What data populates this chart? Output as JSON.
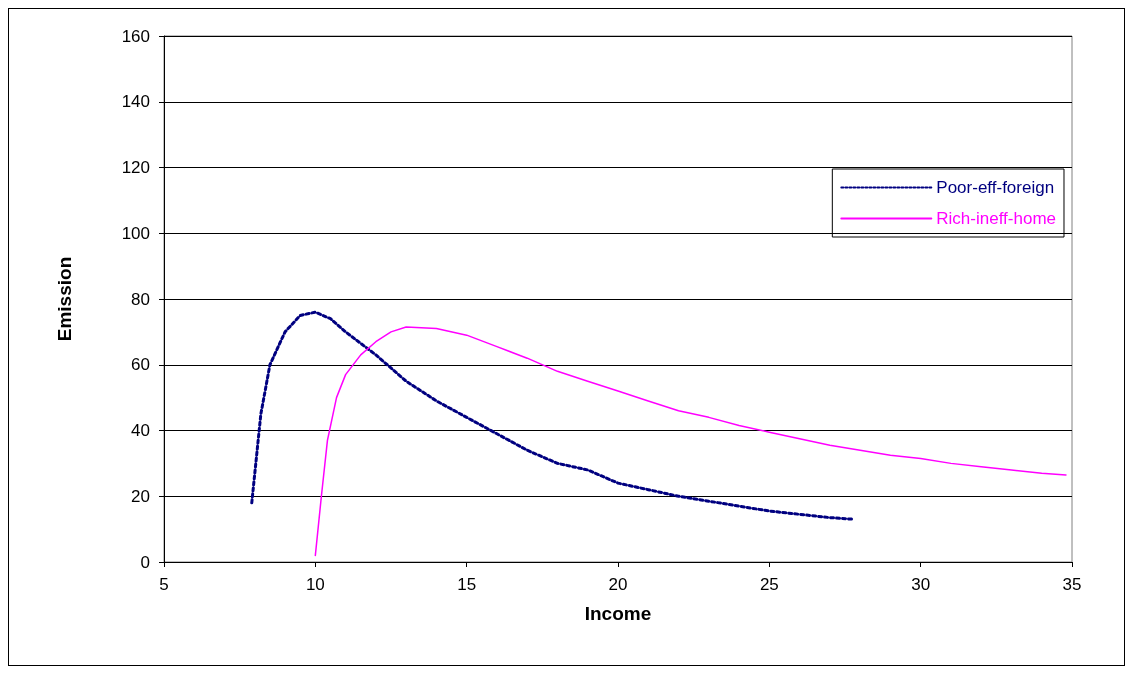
{
  "chart_data": {
    "type": "line",
    "xlabel": "Income",
    "ylabel": "Emission",
    "xlim": [
      5,
      35
    ],
    "xticks": [
      5,
      10,
      15,
      20,
      25,
      30,
      35
    ],
    "ylim": [
      0,
      160
    ],
    "yticks": [
      0,
      20,
      40,
      60,
      80,
      100,
      120,
      140,
      160
    ],
    "grid": "y",
    "legend": "right",
    "marker": "none",
    "series": [
      {
        "name": "Poor-eff-foreign",
        "color": "#000080",
        "line_style": "dotted",
        "x": [
          7.9,
          8.2,
          8.5,
          9,
          9.5,
          10,
          10.5,
          11,
          12,
          13,
          14,
          15,
          16,
          17,
          18,
          19,
          20,
          21,
          22,
          23,
          24,
          25,
          26,
          27,
          27.8
        ],
        "values": [
          18,
          45,
          60,
          70,
          75,
          76,
          74,
          70,
          63,
          55,
          49,
          44,
          39,
          34,
          30,
          28,
          24,
          22,
          20,
          18.5,
          17,
          15.5,
          14.5,
          13.5,
          13
        ]
      },
      {
        "name": "Rich-ineff-home",
        "color": "#ff00ff",
        "line_style": "solid",
        "x": [
          10,
          10.2,
          10.4,
          10.7,
          11,
          11.5,
          12,
          12.5,
          13,
          14,
          15,
          16,
          17,
          18,
          19,
          20,
          21,
          22,
          23,
          24,
          25,
          26,
          27,
          28,
          29,
          30,
          31,
          32,
          33,
          34,
          34.8
        ],
        "values": [
          2,
          20,
          37,
          50,
          57,
          63,
          67,
          70,
          71.5,
          71,
          69,
          65.5,
          62,
          58,
          55,
          52,
          49,
          46,
          44,
          41.5,
          39.5,
          37.5,
          35.5,
          34,
          32.5,
          31.5,
          30,
          29,
          28,
          27,
          26.5
        ]
      }
    ]
  }
}
